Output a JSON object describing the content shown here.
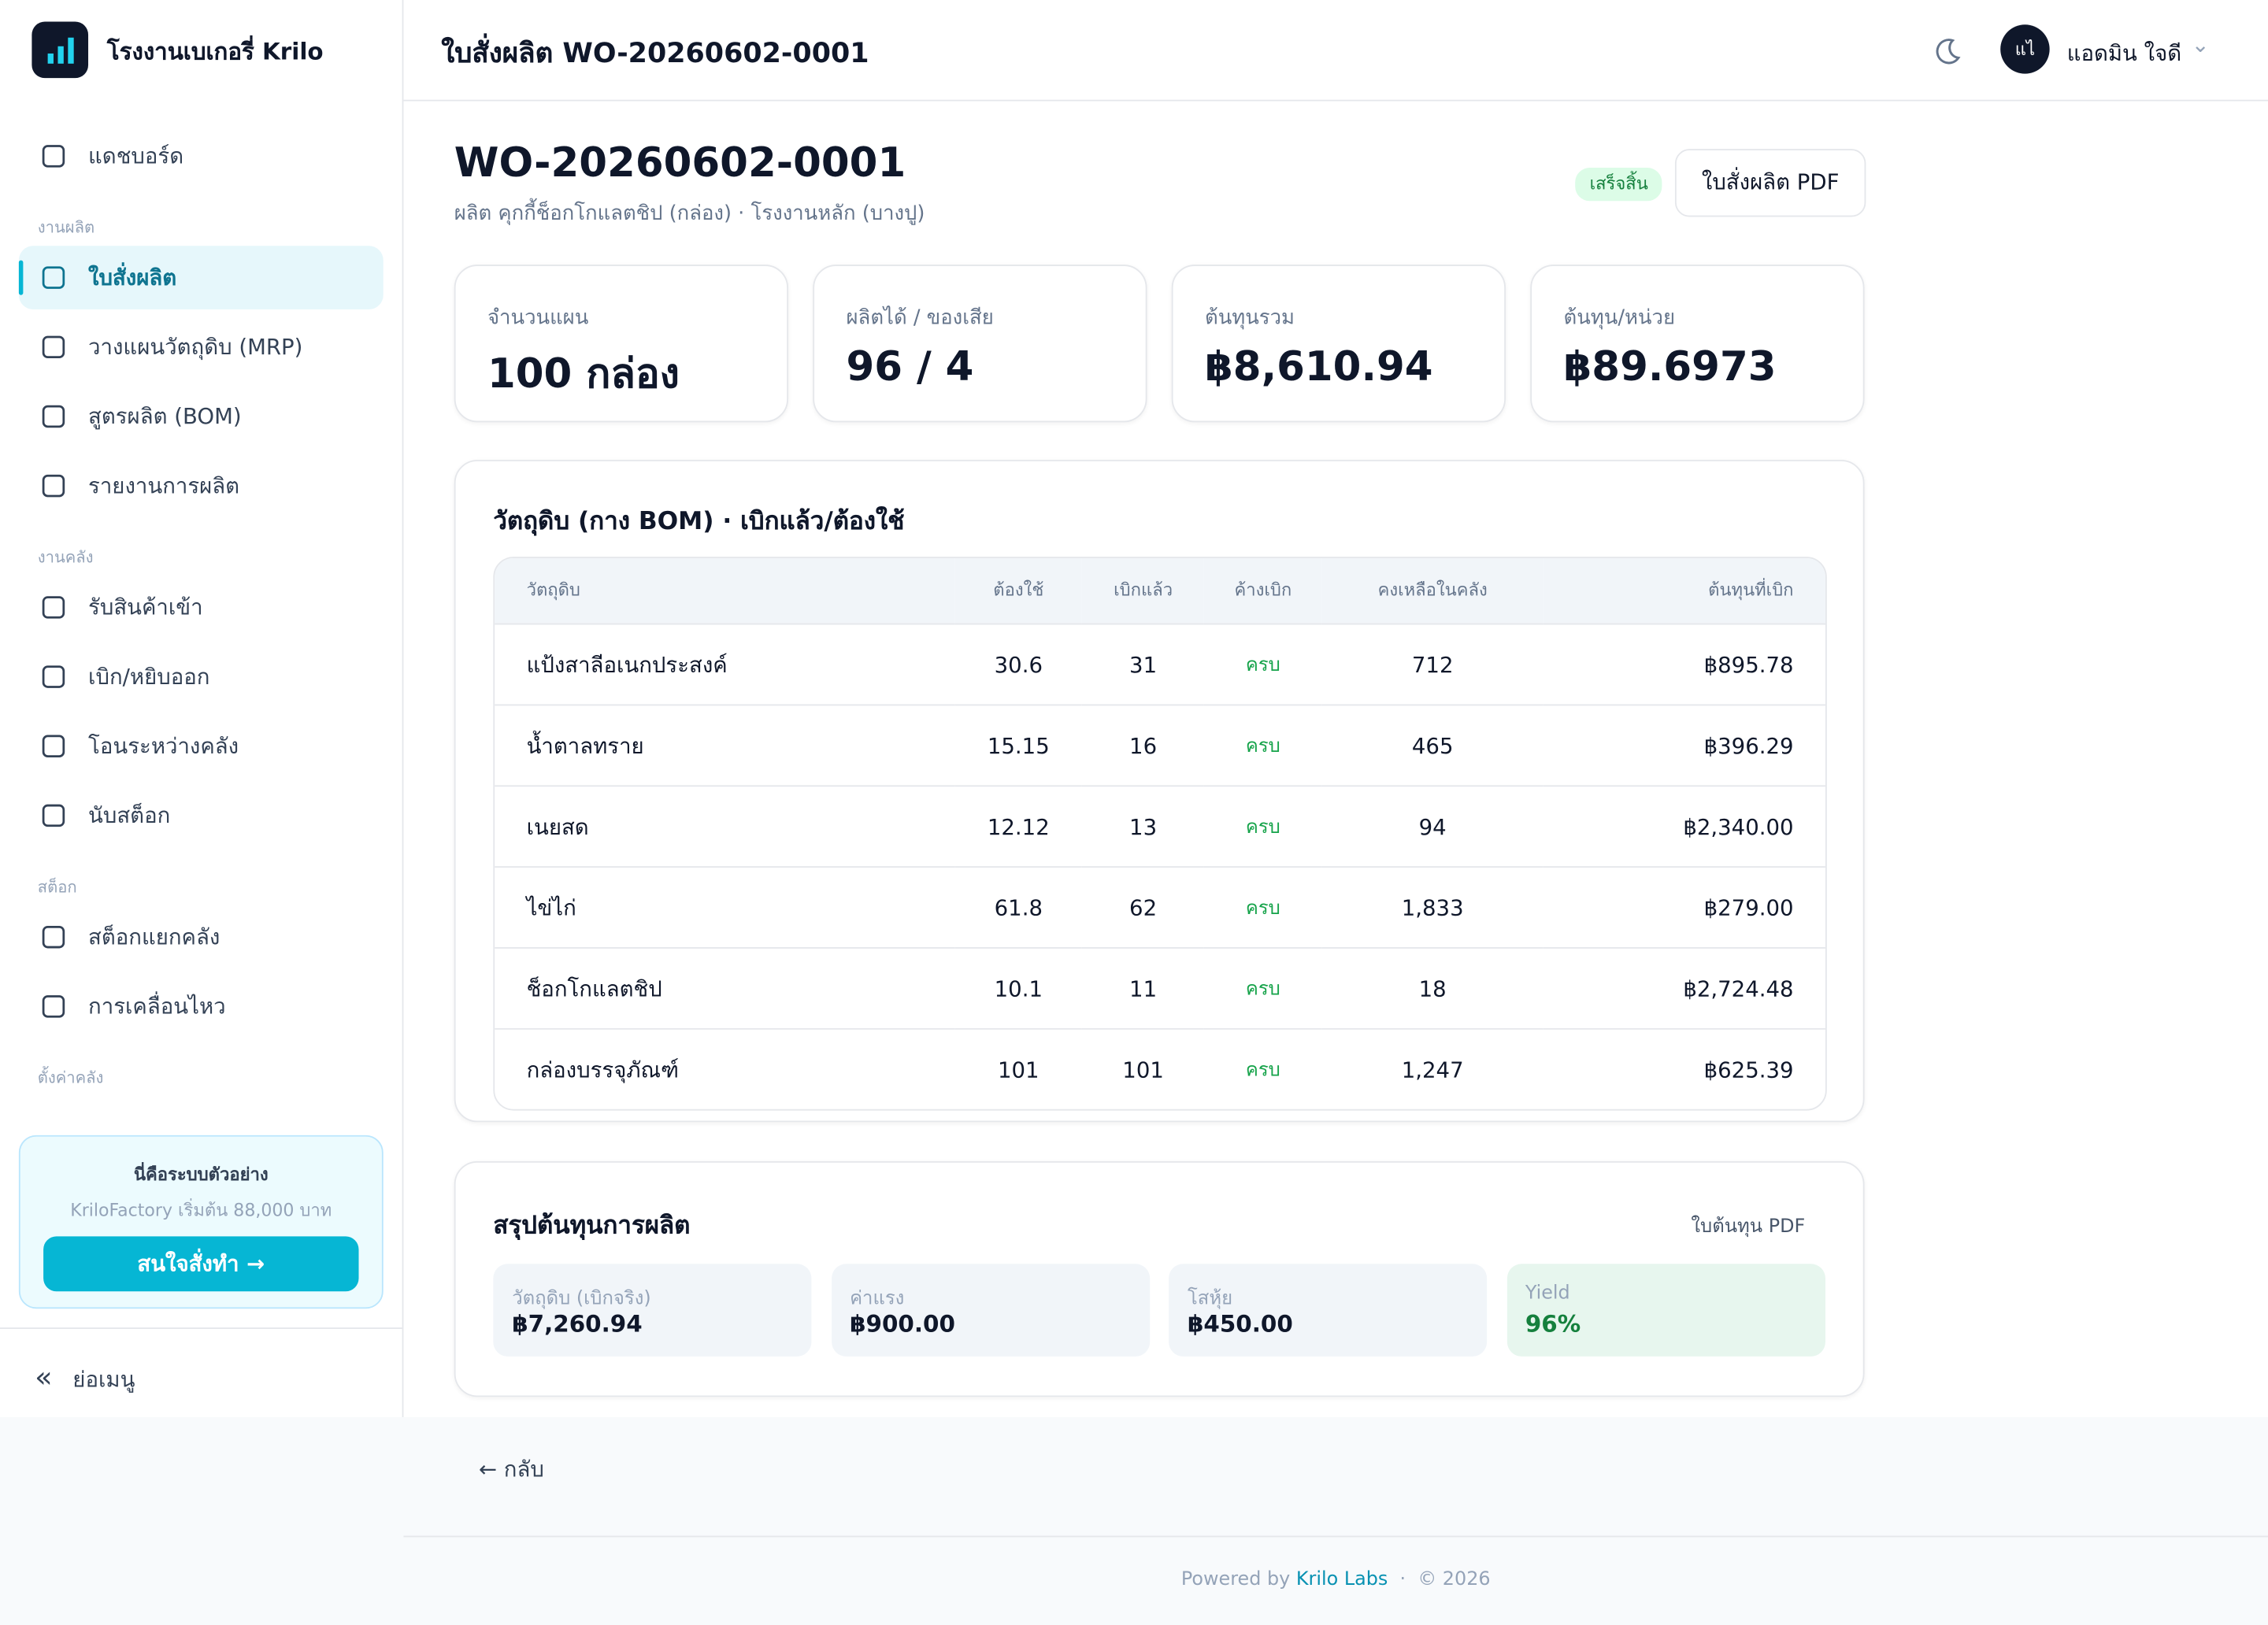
{
  "sidebar": {
    "brand": "โรงงานเบเกอรี่ Krilo",
    "sections": [
      {
        "title": null,
        "items": [
          "แดชบอร์ด"
        ]
      },
      {
        "title": "งานผลิต",
        "items": [
          "ใบสั่งผลิต",
          "วางแผนวัตถุดิบ (MRP)",
          "สูตรผลิต (BOM)",
          "รายงานการผลิต"
        ]
      },
      {
        "title": "งานคลัง",
        "items": [
          "รับสินค้าเข้า",
          "เบิก/หยิบออก",
          "โอนระหว่างคลัง",
          "นับสต็อก"
        ]
      },
      {
        "title": "สต็อก",
        "items": [
          "สต็อกแยกคลัง",
          "การเคลื่อนไหว"
        ]
      },
      {
        "title": "ตั้งค่าคลัง",
        "items": []
      }
    ],
    "promo": {
      "title": "นี่คือระบบตัวอย่าง",
      "text": "KriloFactory เริ่มต้น 88,000 บาท",
      "button": "สนใจสั่งทำ →"
    },
    "collapse": "ย่อเมนู"
  },
  "header": {
    "title": "ใบสั่งผลิต WO-20260602-0001",
    "avatar": "แไ",
    "user": "แอดมิน ใจดี"
  },
  "page": {
    "heading": "WO-20260602-0001",
    "subtitle": "ผลิต คุกกี้ช็อกโกแลตชิป (กล่อง) · โรงงานหลัก (บางปู)",
    "status": "เสร็จสิ้น",
    "pdf": "ใบสั่งผลิต PDF"
  },
  "stats": [
    {
      "label": "จำนวนแผน",
      "value": "100 กล่อง"
    },
    {
      "label": "ผลิตได้ / ของเสีย",
      "value": "96 / 4"
    },
    {
      "label": "ต้นทุนรวม",
      "value": "฿8,610.94"
    },
    {
      "label": "ต้นทุน/หน่วย",
      "value": "฿89.6973"
    }
  ],
  "materials": {
    "title": "วัตถุดิบ (กาง BOM) · เบิกแล้ว/ต้องใช้",
    "headers": [
      "วัตถุดิบ",
      "ต้องใช้",
      "เบิกแล้ว",
      "ค้างเบิก",
      "คงเหลือในคลัง",
      "ต้นทุนที่เบิก"
    ],
    "rows": [
      [
        "แป้งสาลีอเนกประสงค์",
        "30.6",
        "31",
        "ครบ",
        "712",
        "฿895.78"
      ],
      [
        "น้ำตาลทราย",
        "15.15",
        "16",
        "ครบ",
        "465",
        "฿396.29"
      ],
      [
        "เนยสด",
        "12.12",
        "13",
        "ครบ",
        "94",
        "฿2,340.00"
      ],
      [
        "ไข่ไก่",
        "61.8",
        "62",
        "ครบ",
        "1,833",
        "฿279.00"
      ],
      [
        "ช็อกโกแลตชิป",
        "10.1",
        "11",
        "ครบ",
        "18",
        "฿2,724.48"
      ],
      [
        "กล่องบรรจุภัณฑ์",
        "101",
        "101",
        "ครบ",
        "1,247",
        "฿625.39"
      ]
    ]
  },
  "cost": {
    "title": "สรุปต้นทุนการผลิต",
    "link": "ใบต้นทุน PDF",
    "items": [
      {
        "label": "วัตถุดิบ (เบิกจริง)",
        "value": "฿7,260.94"
      },
      {
        "label": "ค่าแรง",
        "value": "฿900.00"
      },
      {
        "label": "โสหุ้ย",
        "value": "฿450.00"
      },
      {
        "label": "Yield",
        "value": "96%"
      }
    ]
  },
  "back": "← กลับ",
  "footer": {
    "prefix": "Powered by",
    "brand": "Krilo Labs",
    "year": "© 2026"
  }
}
